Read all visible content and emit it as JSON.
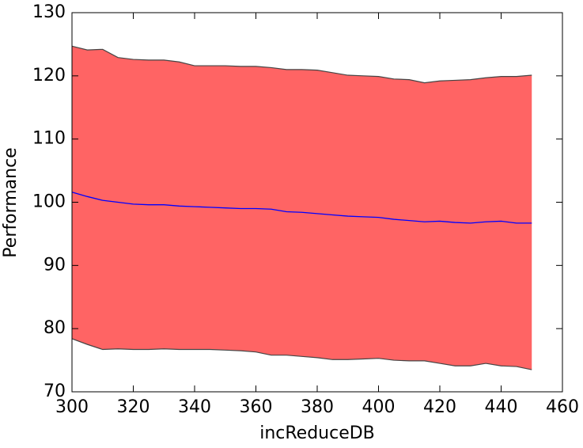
{
  "chart_data": {
    "type": "line_band",
    "x_label": "incReduceDB",
    "y_label": "Performance",
    "x": [
      300,
      305,
      310,
      315,
      320,
      325,
      330,
      335,
      340,
      345,
      350,
      355,
      360,
      365,
      370,
      375,
      380,
      385,
      390,
      395,
      400,
      405,
      410,
      415,
      420,
      425,
      430,
      435,
      440,
      445,
      450
    ],
    "series": [
      {
        "color": "#0000ff",
        "values": [
          101.6,
          100.9,
          100.3,
          100.0,
          99.7,
          99.6,
          99.6,
          99.4,
          99.3,
          99.2,
          99.1,
          99.0,
          99.0,
          98.9,
          98.5,
          98.4,
          98.2,
          98.0,
          97.8,
          97.7,
          97.6,
          97.3,
          97.1,
          96.9,
          97.0,
          96.8,
          96.7,
          96.9,
          97.0,
          96.7,
          96.7
        ]
      }
    ],
    "band": {
      "color": "#ff6464",
      "edge_color": "#444444",
      "upper": [
        124.7,
        124.1,
        124.2,
        122.9,
        122.6,
        122.5,
        122.5,
        122.2,
        121.6,
        121.6,
        121.6,
        121.5,
        121.5,
        121.3,
        121.0,
        121.0,
        120.9,
        120.5,
        120.1,
        120.0,
        119.9,
        119.5,
        119.4,
        118.9,
        119.2,
        119.3,
        119.4,
        119.7,
        119.9,
        119.9,
        120.1
      ],
      "lower": [
        78.4,
        77.5,
        76.7,
        76.8,
        76.7,
        76.7,
        76.8,
        76.7,
        76.7,
        76.7,
        76.6,
        76.5,
        76.3,
        75.8,
        75.8,
        75.6,
        75.4,
        75.1,
        75.1,
        75.2,
        75.3,
        75.0,
        74.9,
        74.9,
        74.5,
        74.1,
        74.1,
        74.5,
        74.1,
        74.0,
        73.5
      ]
    },
    "xlim": [
      300,
      460
    ],
    "xticks": [
      300,
      320,
      340,
      360,
      380,
      400,
      420,
      440,
      460
    ],
    "ylim": [
      70,
      130
    ],
    "yticks": [
      70,
      80,
      90,
      100,
      110,
      120,
      130
    ]
  }
}
